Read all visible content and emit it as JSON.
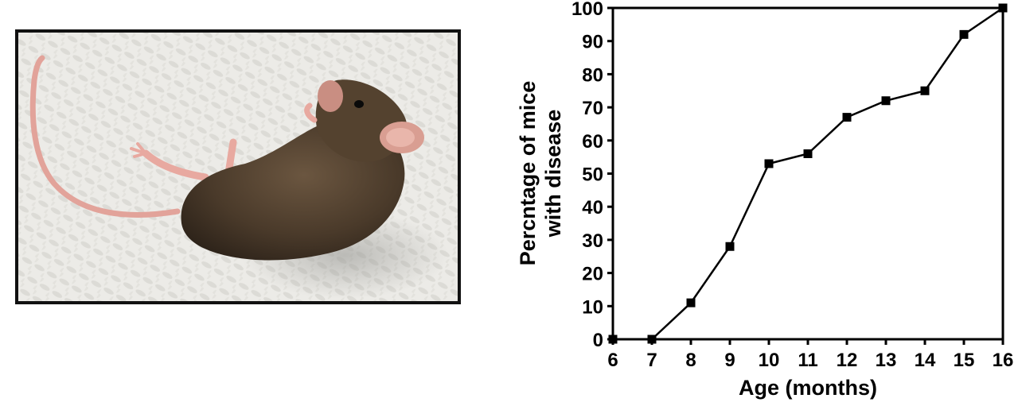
{
  "figure": {
    "photo": {
      "subject": "mouse",
      "colors": {
        "fur": "#4a3a2a",
        "skin": "#e8a9a0",
        "background": "#ecebe7"
      }
    }
  },
  "chart_data": {
    "type": "line",
    "title": "",
    "xlabel": "Age (months)",
    "ylabel_line1": "Percntage of mice",
    "ylabel_line2": "with disease",
    "xlim": [
      6,
      16
    ],
    "ylim": [
      0,
      100
    ],
    "x_ticks": [
      6,
      7,
      8,
      9,
      10,
      11,
      12,
      13,
      14,
      15,
      16
    ],
    "y_ticks": [
      0,
      10,
      20,
      30,
      40,
      50,
      60,
      70,
      80,
      90,
      100
    ],
    "grid": false,
    "marker": "square",
    "series": [
      {
        "x": [
          6,
          7,
          8,
          9,
          10,
          11,
          12,
          13,
          14,
          15,
          16
        ],
        "y": [
          0,
          0,
          11,
          28,
          53,
          56,
          67,
          72,
          75,
          92,
          100
        ]
      }
    ],
    "color": "#000000"
  }
}
